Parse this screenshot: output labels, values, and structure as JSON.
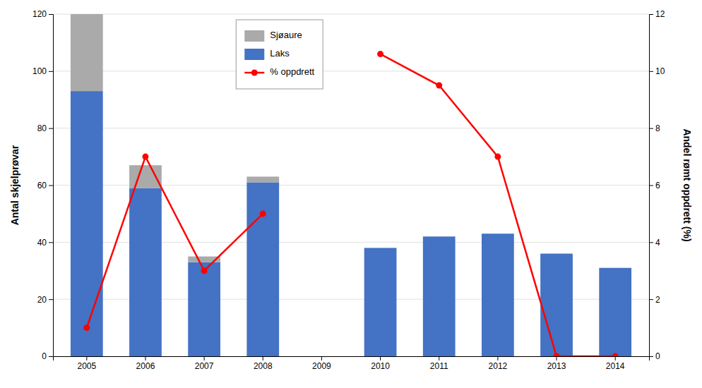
{
  "chart_data": {
    "type": "bar",
    "stacked": true,
    "categories": [
      "2005",
      "2006",
      "2007",
      "2008",
      "2009",
      "2010",
      "2011",
      "2012",
      "2013",
      "2014"
    ],
    "series": [
      {
        "name": "Laks",
        "color": "#4472C4",
        "values": [
          93,
          59,
          33,
          61,
          0,
          38,
          42,
          43,
          36,
          31
        ]
      },
      {
        "name": "Sjøaure",
        "color": "#AAAAAA",
        "values": [
          27,
          8,
          2,
          2,
          0,
          0,
          0,
          0,
          0,
          0
        ]
      },
      {
        "name": "% oppdrett",
        "type": "line",
        "axis": "y2",
        "color": "#FF0000",
        "marker": "circle",
        "values": [
          1.0,
          7.0,
          3.0,
          5.0,
          null,
          10.6,
          9.5,
          7.0,
          0.0,
          0.0
        ]
      }
    ],
    "ylabel": "Antal skjelprøvar",
    "y2label": "Andel rømt oppdrett (%)",
    "ylim": [
      0,
      120
    ],
    "yticks": [
      0,
      20,
      40,
      60,
      80,
      100,
      120
    ],
    "y2lim": [
      0,
      12
    ],
    "y2ticks": [
      0,
      2,
      4,
      6,
      8,
      10,
      12
    ],
    "grid": true,
    "legend": "upper center"
  }
}
